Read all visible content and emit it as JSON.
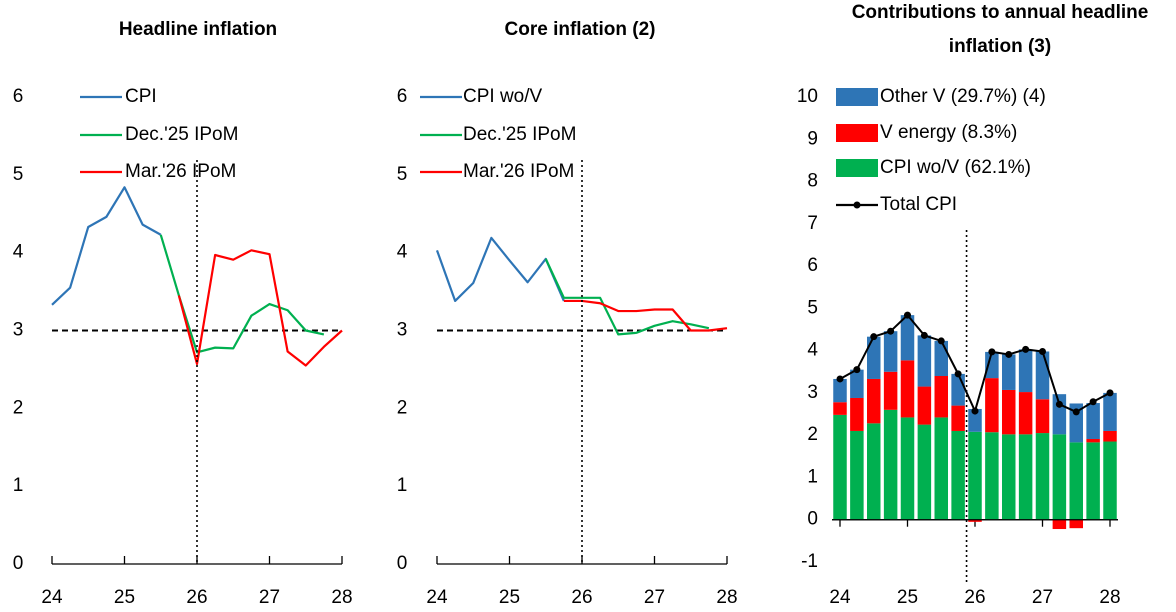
{
  "chart_data": [
    {
      "type": "line",
      "title": "Headline inflation",
      "x": [
        24,
        24.25,
        24.5,
        24.75,
        25,
        25.25,
        25.5,
        25.75,
        26,
        26.25,
        26.5,
        26.75,
        27,
        27.25,
        27.5,
        27.75,
        28
      ],
      "series": [
        {
          "name": "CPI",
          "color": "#2e75b6",
          "values": [
            3.33,
            3.55,
            4.33,
            4.46,
            4.84,
            4.36,
            4.23,
            null,
            null,
            null,
            null,
            null,
            null,
            null,
            null,
            null,
            null
          ]
        },
        {
          "name": "Dec.'25 IPoM",
          "color": "#00b050",
          "values": [
            null,
            null,
            null,
            null,
            null,
            null,
            4.23,
            3.45,
            2.72,
            2.78,
            2.77,
            3.19,
            3.34,
            3.26,
            3.0,
            2.95,
            null
          ]
        },
        {
          "name": "Mar.'26 IPoM",
          "color": "#ff0000",
          "values": [
            null,
            null,
            null,
            null,
            null,
            null,
            null,
            3.45,
            2.57,
            3.97,
            3.91,
            4.03,
            3.98,
            2.73,
            2.55,
            2.79,
            3.0
          ]
        }
      ],
      "xlim": [
        24,
        28
      ],
      "xticks": [
        24,
        25,
        26,
        27,
        28
      ],
      "ylim": [
        0,
        6
      ],
      "yticks": [
        0,
        1,
        2,
        3,
        4,
        5,
        6
      ],
      "reference_y": 3,
      "reference_x": 26
    },
    {
      "type": "line",
      "title": "Core inflation (2)",
      "x": [
        24,
        24.25,
        24.5,
        24.75,
        25,
        25.25,
        25.5,
        25.75,
        26,
        26.25,
        26.5,
        26.75,
        27,
        27.25,
        27.5,
        27.75,
        28
      ],
      "series": [
        {
          "name": "CPI wo/V",
          "color": "#2e75b6",
          "values": [
            4.03,
            3.38,
            3.61,
            4.19,
            3.9,
            3.62,
            3.92,
            3.38,
            null,
            null,
            null,
            null,
            null,
            null,
            null,
            null,
            null
          ]
        },
        {
          "name": "Dec.'25 IPoM",
          "color": "#00b050",
          "values": [
            null,
            null,
            null,
            null,
            null,
            null,
            3.92,
            3.42,
            3.42,
            3.42,
            2.95,
            2.97,
            3.06,
            3.12,
            3.08,
            3.03,
            null
          ]
        },
        {
          "name": "Mar.'26 IPoM",
          "color": "#ff0000",
          "values": [
            null,
            null,
            null,
            null,
            null,
            null,
            null,
            3.38,
            3.38,
            3.35,
            3.25,
            3.25,
            3.27,
            3.27,
            3.0,
            3.0,
            3.03
          ]
        }
      ],
      "xlim": [
        24,
        28
      ],
      "xticks": [
        24,
        25,
        26,
        27,
        28
      ],
      "ylim": [
        0,
        6
      ],
      "yticks": [
        0,
        1,
        2,
        3,
        4,
        5,
        6
      ],
      "reference_y": 3,
      "reference_x": 26
    },
    {
      "type": "bar",
      "title": "Contributions to annual headline inflation (3)",
      "x": [
        24,
        24.25,
        24.5,
        24.75,
        25,
        25.25,
        25.5,
        25.75,
        26,
        26.25,
        26.5,
        26.75,
        27,
        27.25,
        27.5,
        27.75,
        28
      ],
      "series": [
        {
          "name": "Other V (29.7%) (4)",
          "color": "#2e75b6",
          "values": [
            0.55,
            0.67,
            1.0,
            0.96,
            1.07,
            1.21,
            0.83,
            0.75,
            0.54,
            0.62,
            0.84,
            1.01,
            1.13,
            0.95,
            0.92,
            0.85,
            0.9
          ]
        },
        {
          "name": "V energy (8.3%)",
          "color": "#ff0000",
          "values": [
            0.3,
            0.78,
            1.05,
            0.9,
            1.35,
            0.9,
            0.98,
            0.6,
            -0.05,
            1.28,
            1.05,
            1.0,
            0.8,
            -0.22,
            -0.2,
            0.08,
            0.25
          ]
        },
        {
          "name": "CPI wo/V (62.1%)",
          "color": "#00b050",
          "values": [
            2.48,
            2.1,
            2.28,
            2.6,
            2.42,
            2.25,
            2.42,
            2.1,
            2.08,
            2.07,
            2.02,
            2.02,
            2.05,
            2.02,
            1.83,
            1.83,
            1.85
          ]
        },
        {
          "name": "Total CPI",
          "type": "line",
          "color": "#000000",
          "values": [
            3.33,
            3.55,
            4.33,
            4.46,
            4.84,
            4.36,
            4.23,
            3.45,
            2.57,
            3.97,
            3.91,
            4.03,
            3.98,
            2.73,
            2.55,
            2.79,
            3.0
          ]
        }
      ],
      "xlim": [
        24,
        28
      ],
      "xticks": [
        24,
        25,
        26,
        27,
        28
      ],
      "ylim": [
        -1,
        10
      ],
      "yticks": [
        -1,
        0,
        1,
        2,
        3,
        4,
        5,
        6,
        7,
        8,
        9,
        10
      ],
      "reference_x": 25.875
    }
  ]
}
